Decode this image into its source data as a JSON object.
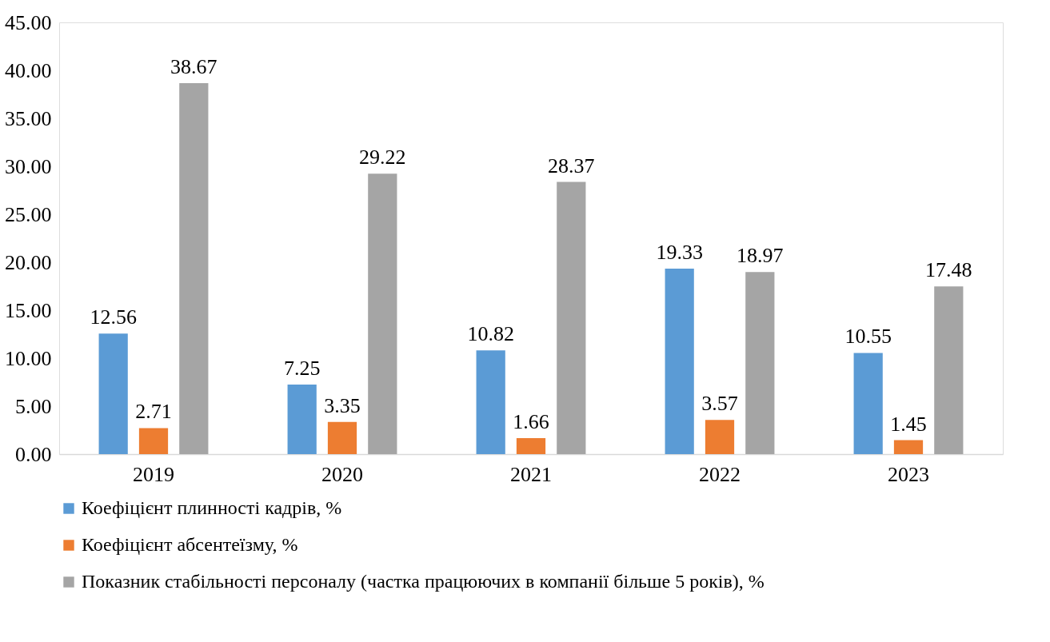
{
  "chart_data": {
    "type": "bar",
    "categories": [
      "2019",
      "2020",
      "2021",
      "2022",
      "2023"
    ],
    "series": [
      {
        "name": "Коефіцієнт плинності кадрів, %",
        "color": "#5b9bd5",
        "values": [
          12.56,
          7.25,
          10.82,
          19.33,
          10.55
        ]
      },
      {
        "name": "Коефіцієнт абсентеїзму, %",
        "color": "#ed7d31",
        "values": [
          2.71,
          3.35,
          1.66,
          3.57,
          1.45
        ]
      },
      {
        "name": "Показник стабільності персоналу (частка працюючих в компанії більше 5 років), %",
        "color": "#a5a5a5",
        "values": [
          38.67,
          29.22,
          28.37,
          18.97,
          17.48
        ]
      }
    ],
    "ylim": [
      0,
      45
    ],
    "yticks": [
      {
        "value": 0,
        "label": "0.00"
      },
      {
        "value": 5,
        "label": "5.00"
      },
      {
        "value": 10,
        "label": "10.00"
      },
      {
        "value": 15,
        "label": "15.00"
      },
      {
        "value": 20,
        "label": "20.00"
      },
      {
        "value": 25,
        "label": "25.00"
      },
      {
        "value": 30,
        "label": "30.00"
      },
      {
        "value": 35,
        "label": "35.00"
      },
      {
        "value": 40,
        "label": "40.00"
      },
      {
        "value": 45,
        "label": "45.00"
      }
    ],
    "data_labels": true,
    "grid": false,
    "legend": "bottom"
  }
}
